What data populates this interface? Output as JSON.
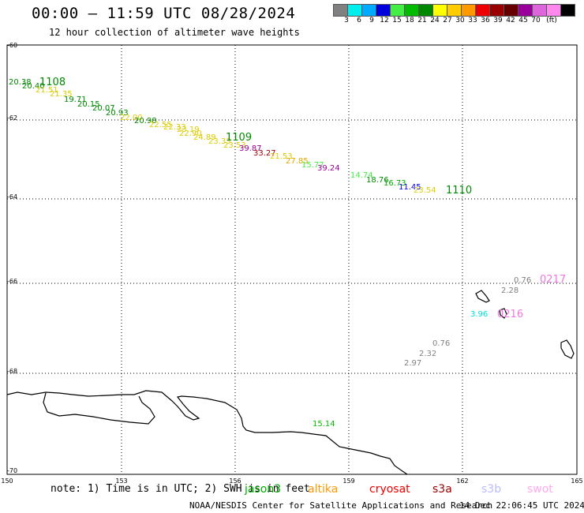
{
  "title": "00:00 – 11:59 UTC 08/28/2024",
  "subtitle": "12 hour collection of altimeter wave heights",
  "legend": {
    "unit": "(ft)",
    "items": [
      {
        "label": "3",
        "color": "#808080"
      },
      {
        "label": "6",
        "color": "#00eeee"
      },
      {
        "label": "9",
        "color": "#00aaff"
      },
      {
        "label": "12",
        "color": "#0000dd"
      },
      {
        "label": "15",
        "color": "#44ee44"
      },
      {
        "label": "18",
        "color": "#00bb00"
      },
      {
        "label": "21",
        "color": "#008800"
      },
      {
        "label": "24",
        "color": "#ffff00"
      },
      {
        "label": "27",
        "color": "#ffcc00"
      },
      {
        "label": "30",
        "color": "#ff9900"
      },
      {
        "label": "33",
        "color": "#ee0000"
      },
      {
        "label": "36",
        "color": "#990000"
      },
      {
        "label": "39",
        "color": "#660000"
      },
      {
        "label": "42",
        "color": "#990099"
      },
      {
        "label": "45",
        "color": "#dd66dd"
      },
      {
        "label": "70",
        "color": "#ff88ee"
      },
      {
        "label": "",
        "color": "#000000"
      }
    ]
  },
  "axes": {
    "x_ticks": [
      "150",
      "153",
      "156",
      "159",
      "162",
      "165"
    ],
    "y_ticks": [
      "-60",
      "-62",
      "-64",
      "-66",
      "-68",
      "-70"
    ]
  },
  "passes": [
    {
      "label": "1108",
      "color": "#008800"
    },
    {
      "label": "1109",
      "color": "#008800"
    },
    {
      "label": "1110",
      "color": "#008800"
    },
    {
      "label": "0216",
      "color": "#ee77dd"
    },
    {
      "label": "0217",
      "color": "#ee77dd"
    }
  ],
  "readings": [
    {
      "value": "20.38",
      "color": "#008800"
    },
    {
      "value": "20.40",
      "color": "#008800"
    },
    {
      "value": "21.51",
      "color": "#ddcc00"
    },
    {
      "value": "21.35",
      "color": "#ddcc00"
    },
    {
      "value": "19.71",
      "color": "#008800"
    },
    {
      "value": "20.15",
      "color": "#008800"
    },
    {
      "value": "20.07",
      "color": "#008800"
    },
    {
      "value": "20.93",
      "color": "#008800"
    },
    {
      "value": "22.00",
      "color": "#ddcc00"
    },
    {
      "value": "20.98",
      "color": "#008800"
    },
    {
      "value": "22.55",
      "color": "#ddcc00"
    },
    {
      "value": "22.33",
      "color": "#ddcc00"
    },
    {
      "value": "23.19",
      "color": "#ddcc00"
    },
    {
      "value": "22.90",
      "color": "#ddcc00"
    },
    {
      "value": "24.89",
      "color": "#ddcc00"
    },
    {
      "value": "23.33",
      "color": "#ddcc00"
    },
    {
      "value": "23.53",
      "color": "#ddcc00"
    },
    {
      "value": "39.87",
      "color": "#990099"
    },
    {
      "value": "33.27",
      "color": "#990000"
    },
    {
      "value": "21.53",
      "color": "#ddcc00"
    },
    {
      "value": "27.85",
      "color": "#ddaa00"
    },
    {
      "value": "15.77",
      "color": "#44ee44"
    },
    {
      "value": "39.24",
      "color": "#990099"
    },
    {
      "value": "14.74",
      "color": "#44ee44"
    },
    {
      "value": "18.76",
      "color": "#008800"
    },
    {
      "value": "16.73",
      "color": "#00aa00"
    },
    {
      "value": "11.45",
      "color": "#0000dd"
    },
    {
      "value": "23.54",
      "color": "#ddcc00"
    },
    {
      "value": "0.76",
      "color": "#808080"
    },
    {
      "value": "2.28",
      "color": "#808080"
    },
    {
      "value": "3.96",
      "color": "#00dddd"
    },
    {
      "value": "0.76",
      "color": "#808080"
    },
    {
      "value": "2.32",
      "color": "#808080"
    },
    {
      "value": "2.97",
      "color": "#808080"
    },
    {
      "value": "15.14",
      "color": "#00bb00"
    }
  ],
  "note": "note: 1) Time is in UTC; 2) SWH is in feet",
  "satellites": [
    {
      "name": "jason3",
      "color": "#00aa00"
    },
    {
      "name": "altika",
      "color": "#ff9900"
    },
    {
      "name": "cryosat",
      "color": "#ee0000"
    },
    {
      "name": "s3a",
      "color": "#990000"
    },
    {
      "name": "s3b",
      "color": "#bbbbff"
    },
    {
      "name": "swot",
      "color": "#ffaaee"
    }
  ],
  "credit": "NOAA/NESDIS Center for Satellite Applications and Research",
  "timestamp": "14 Dec 22:06:45 UTC 2024"
}
